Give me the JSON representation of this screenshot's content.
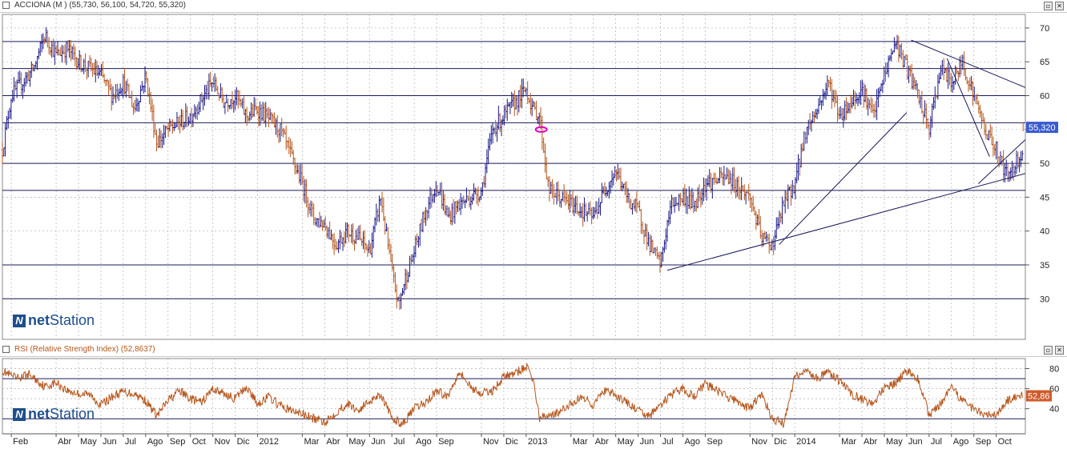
{
  "price_pane": {
    "title": "ACCIONA (M ) (55,730, 56,100, 54,720, 55,320)",
    "last_value_label": "55,320"
  },
  "rsi_pane": {
    "title": "RSI (Relative Strength Index) (52,8637)",
    "last_value_label": "52,86"
  },
  "watermark": {
    "text": "netStation",
    "prefix": "net",
    "suffix": "Station"
  },
  "colors": {
    "up_candle": "#1a1a8c",
    "down_candle": "#b5561c",
    "rsi_line": "#b5561c",
    "gridline": "#b0b0b0",
    "support_line": "#1a1a5a",
    "last_value_box": "#3a5bd0",
    "rsi_value_box": "#d05a2a",
    "marker": "#e000c0"
  },
  "chart_data": [
    {
      "type": "candlestick",
      "title": "ACCIONA (M ) (55,730, 56,100, 54,720, 55,320)",
      "last_ohlc": {
        "open": 55.73,
        "high": 56.1,
        "low": 54.72,
        "close": 55.32
      },
      "ylim": [
        24,
        72
      ],
      "y_ticks": [
        30,
        35,
        40,
        45,
        50,
        55,
        60,
        65,
        70
      ],
      "x_tick_labels": [
        "Feb",
        "Abr",
        "May",
        "Jun",
        "Jul",
        "Ago",
        "Sep",
        "Oct",
        "Nov",
        "Dic",
        "2012",
        "Mar",
        "Abr",
        "May",
        "Jun",
        "Jul",
        "Ago",
        "Sep",
        "Nov",
        "Dic",
        "2013",
        "Mar",
        "Abr",
        "May",
        "Jun",
        "Jul",
        "Ago",
        "Sep",
        "Nov",
        "Dic",
        "2014",
        "Mar",
        "Abr",
        "May",
        "Jun",
        "Jul",
        "Ago",
        "Sep",
        "Oct"
      ],
      "x_tick_months": [
        1,
        3,
        4,
        5,
        6,
        7,
        8,
        9,
        10,
        11,
        12,
        14,
        15,
        16,
        17,
        18,
        19,
        20,
        22,
        23,
        24,
        26,
        27,
        28,
        29,
        30,
        31,
        32,
        34,
        35,
        36,
        38,
        39,
        40,
        41,
        42,
        43,
        44,
        45
      ],
      "x_range_months": [
        0.6,
        46.3
      ],
      "horizontal_levels": [
        68,
        64,
        60,
        56,
        50,
        46,
        35,
        30
      ],
      "price_path_months": [
        0.6,
        1,
        2,
        2.5,
        3,
        3.5,
        4,
        5,
        5.5,
        6,
        6.5,
        7,
        7.5,
        8,
        9,
        10,
        10.5,
        11,
        11.5,
        12,
        13,
        14,
        14.5,
        15,
        15.5,
        16,
        16.5,
        17,
        17.5,
        18,
        18.3,
        18.6,
        19,
        19.5,
        20,
        20.5,
        21,
        22,
        22.5,
        23,
        23.5,
        24,
        24.3,
        24.6,
        25,
        26,
        27,
        27.5,
        28,
        28.5,
        29,
        29.5,
        30,
        30.3,
        30.5,
        31,
        31.5,
        32,
        33,
        34,
        34.5,
        35,
        35.5,
        36,
        36.5,
        37,
        37.5,
        38,
        38.5,
        39,
        39.5,
        40,
        40.5,
        41,
        41.5,
        42,
        42.5,
        43,
        43.5,
        44,
        44.5,
        45,
        45.5,
        46.2
      ],
      "price_path_values": [
        52,
        60,
        64,
        69,
        66,
        67,
        65,
        63,
        60,
        62,
        58,
        63,
        53,
        55,
        57,
        62,
        59,
        60,
        57,
        58,
        55,
        47,
        42,
        41,
        38,
        40,
        39,
        37,
        45,
        34,
        29,
        33,
        37,
        43,
        47,
        42,
        44,
        46,
        55,
        57,
        59,
        61,
        58,
        57,
        46,
        44,
        42,
        46,
        49,
        45,
        43,
        38,
        35,
        41,
        44,
        45,
        44,
        47,
        48,
        45,
        39,
        38,
        44,
        47,
        55,
        58,
        62,
        57,
        59,
        61,
        57,
        63,
        68,
        64,
        60,
        55,
        64,
        62,
        65,
        60,
        55,
        52,
        48,
        52,
        56,
        55,
        51,
        55.32
      ],
      "trendlines": [
        {
          "from": [
            30.3,
            34.2
          ],
          "to": [
            46.3,
            48.5
          ]
        },
        {
          "from": [
            35.3,
            38.0
          ],
          "to": [
            41.0,
            57.5
          ]
        },
        {
          "from": [
            41.2,
            68.2
          ],
          "to": [
            46.3,
            61.2
          ]
        },
        {
          "from": [
            42.8,
            65.5
          ],
          "to": [
            44.7,
            51.0
          ]
        },
        {
          "from": [
            44.2,
            47.0
          ],
          "to": [
            46.3,
            53.5
          ]
        }
      ],
      "marker_at": [
        24.6,
        55
      ]
    },
    {
      "type": "line",
      "title": "RSI (Relative Strength Index) (52,8637)",
      "ylim": [
        15,
        90
      ],
      "y_ticks": [
        40,
        60,
        80
      ],
      "reference_levels": [
        70,
        30
      ],
      "last_value": 52.86,
      "x_months": [
        0.6,
        1.2,
        1.8,
        2.5,
        3,
        3.5,
        4,
        4.5,
        5,
        5.5,
        6,
        6.5,
        7,
        7.5,
        8,
        8.5,
        9,
        9.5,
        10,
        10.5,
        11,
        11.5,
        12,
        12.5,
        13,
        13.5,
        14,
        14.5,
        15,
        15.5,
        16,
        16.5,
        17,
        17.5,
        18,
        18.5,
        19,
        19.5,
        20,
        20.5,
        21,
        21.5,
        22,
        22.5,
        23,
        23.5,
        24,
        24.3,
        24.6,
        25,
        25.5,
        26,
        26.5,
        27,
        27.5,
        28,
        28.5,
        29,
        29.5,
        30,
        30.5,
        31,
        31.5,
        32,
        32.5,
        33,
        33.5,
        34,
        34.5,
        35,
        35.5,
        36,
        36.5,
        37,
        37.5,
        38,
        38.5,
        39,
        39.5,
        40,
        40.5,
        41,
        41.5,
        42,
        42.5,
        43,
        43.5,
        44,
        44.5,
        45,
        45.5,
        46.2
      ],
      "values": [
        78,
        70,
        74,
        62,
        66,
        58,
        55,
        54,
        44,
        52,
        57,
        55,
        48,
        33,
        48,
        58,
        50,
        46,
        60,
        55,
        50,
        62,
        45,
        52,
        43,
        38,
        35,
        30,
        27,
        36,
        45,
        38,
        48,
        55,
        30,
        25,
        40,
        46,
        58,
        52,
        78,
        62,
        55,
        58,
        72,
        75,
        82,
        70,
        30,
        34,
        36,
        45,
        52,
        44,
        58,
        53,
        46,
        38,
        32,
        44,
        54,
        60,
        52,
        65,
        58,
        52,
        46,
        40,
        55,
        30,
        25,
        72,
        78,
        70,
        76,
        68,
        55,
        50,
        45,
        60,
        65,
        78,
        70,
        34,
        44,
        60,
        48,
        40,
        35,
        33,
        48,
        53
      ]
    }
  ]
}
